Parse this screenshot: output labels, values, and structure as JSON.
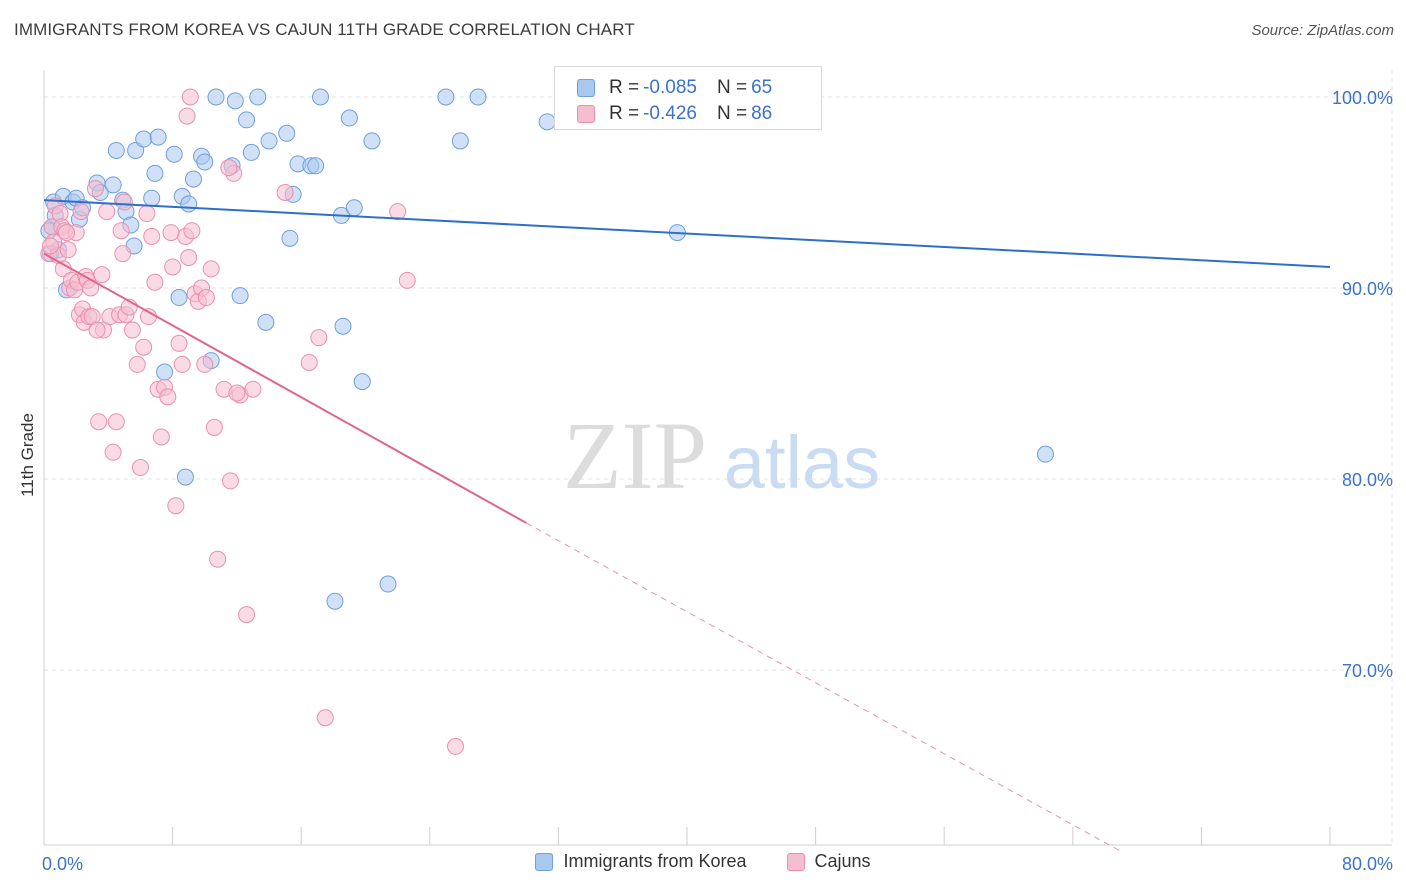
{
  "header": {
    "title": "IMMIGRANTS FROM KOREA VS CAJUN 11TH GRADE CORRELATION CHART",
    "source": "Source: ZipAtlas.com"
  },
  "watermark": {
    "zip": "ZIP",
    "atlas": "atlas"
  },
  "legend_top": [
    {
      "r_label": "R = ",
      "r_value": "-0.085",
      "n_label": "N = ",
      "n_value": "65"
    },
    {
      "r_label": "R = ",
      "r_value": "-0.426",
      "n_label": "N = ",
      "n_value": "86"
    }
  ],
  "legend_bottom": [
    {
      "label": "Immigrants from Korea"
    },
    {
      "label": "Cajuns"
    }
  ],
  "colors": {
    "blue_fill": "#a9c8f0",
    "blue_stroke": "#6f9fdc",
    "blue_line": "#2f6fc9",
    "pink_fill": "#f5bdd0",
    "pink_stroke": "#ea8fae",
    "pink_line": "#e0648f",
    "axis_text": "#3a73c9",
    "grid": "#e3e3e3"
  },
  "chart_data": {
    "type": "scatter",
    "title": "IMMIGRANTS FROM KOREA VS CAJUN 11TH GRADE CORRELATION CHART",
    "xlabel": "",
    "ylabel": "11th Grade",
    "xlim": [
      0,
      80
    ],
    "ylim": [
      60.5,
      101.5
    ],
    "x_tick_labels": [
      {
        "value": 0,
        "label": "0.0%"
      },
      {
        "value": 80,
        "label": "80.0%"
      }
    ],
    "y_tick_labels": [
      {
        "value": 100,
        "label": "100.0%"
      },
      {
        "value": 90,
        "label": "90.0%"
      },
      {
        "value": 80,
        "label": "80.0%"
      },
      {
        "value": 70,
        "label": "70.0%"
      }
    ],
    "x_minor_ticks": [
      0,
      8,
      16,
      24,
      32,
      40,
      48,
      56,
      64,
      72,
      80
    ],
    "grid": true,
    "series": [
      {
        "name": "Immigrants from Korea",
        "r": -0.085,
        "n": 65,
        "trend": {
          "x0": 0,
          "y0": 94.6,
          "x1": 80,
          "y1": 91.1
        },
        "points": [
          [
            0.4,
            91.8
          ],
          [
            0.5,
            93.2
          ],
          [
            0.6,
            94.5
          ],
          [
            0.7,
            93.8
          ],
          [
            1.2,
            94.8
          ],
          [
            1.4,
            89.9
          ],
          [
            1.8,
            94.5
          ],
          [
            2.0,
            94.7
          ],
          [
            2.2,
            93.6
          ],
          [
            2.4,
            94.2
          ],
          [
            3.3,
            95.5
          ],
          [
            3.5,
            95.0
          ],
          [
            4.3,
            95.4
          ],
          [
            4.5,
            97.2
          ],
          [
            4.9,
            94.6
          ],
          [
            5.1,
            94.0
          ],
          [
            5.4,
            93.3
          ],
          [
            5.6,
            92.2
          ],
          [
            5.7,
            97.2
          ],
          [
            6.2,
            97.8
          ],
          [
            6.7,
            94.7
          ],
          [
            6.9,
            96.0
          ],
          [
            7.1,
            97.9
          ],
          [
            7.5,
            85.6
          ],
          [
            8.1,
            97.0
          ],
          [
            8.4,
            89.5
          ],
          [
            8.6,
            94.8
          ],
          [
            8.8,
            80.1
          ],
          [
            9.0,
            94.4
          ],
          [
            9.3,
            95.7
          ],
          [
            9.8,
            96.9
          ],
          [
            10.0,
            96.6
          ],
          [
            10.4,
            86.2
          ],
          [
            10.7,
            100.0
          ],
          [
            11.7,
            96.4
          ],
          [
            11.9,
            99.8
          ],
          [
            12.2,
            89.6
          ],
          [
            12.6,
            98.8
          ],
          [
            12.9,
            97.1
          ],
          [
            13.3,
            100.0
          ],
          [
            13.8,
            88.2
          ],
          [
            14.0,
            97.7
          ],
          [
            15.1,
            98.1
          ],
          [
            15.3,
            92.6
          ],
          [
            15.5,
            94.9
          ],
          [
            15.8,
            96.5
          ],
          [
            16.6,
            96.4
          ],
          [
            16.9,
            96.4
          ],
          [
            17.2,
            100.0
          ],
          [
            18.1,
            73.6
          ],
          [
            18.5,
            93.8
          ],
          [
            18.6,
            88.0
          ],
          [
            19.0,
            98.9
          ],
          [
            19.3,
            94.2
          ],
          [
            19.8,
            85.1
          ],
          [
            20.4,
            97.7
          ],
          [
            21.4,
            74.5
          ],
          [
            25.0,
            100.0
          ],
          [
            25.9,
            97.7
          ],
          [
            27.0,
            100.0
          ],
          [
            31.3,
            98.7
          ],
          [
            39.4,
            92.9
          ],
          [
            62.3,
            81.3
          ],
          [
            0.3,
            93.0
          ],
          [
            0.9,
            92.0
          ]
        ]
      },
      {
        "name": "Cajuns",
        "r": -0.426,
        "n": 86,
        "trend": {
          "x0": 0,
          "y0": 91.8,
          "x1": 30.0,
          "y1": 77.7
        },
        "trend_extended": {
          "x0": 30.0,
          "y0": 77.7,
          "x1": 67.0,
          "y1": 60.5
        },
        "points": [
          [
            0.3,
            91.8
          ],
          [
            0.5,
            93.2
          ],
          [
            0.6,
            92.4
          ],
          [
            0.7,
            94.3
          ],
          [
            0.9,
            91.7
          ],
          [
            1.0,
            93.9
          ],
          [
            1.1,
            93.2
          ],
          [
            1.2,
            91.0
          ],
          [
            1.3,
            93.0
          ],
          [
            1.5,
            92.0
          ],
          [
            1.6,
            90.0
          ],
          [
            1.7,
            90.4
          ],
          [
            1.9,
            89.9
          ],
          [
            2.0,
            92.9
          ],
          [
            2.1,
            90.3
          ],
          [
            2.2,
            88.6
          ],
          [
            2.4,
            88.9
          ],
          [
            2.5,
            88.2
          ],
          [
            2.6,
            90.6
          ],
          [
            2.7,
            90.4
          ],
          [
            2.8,
            88.5
          ],
          [
            2.9,
            90.0
          ],
          [
            3.0,
            88.5
          ],
          [
            3.2,
            95.2
          ],
          [
            3.4,
            83.0
          ],
          [
            3.6,
            90.7
          ],
          [
            3.7,
            87.8
          ],
          [
            3.9,
            94.0
          ],
          [
            4.1,
            88.5
          ],
          [
            4.3,
            81.4
          ],
          [
            4.5,
            83.0
          ],
          [
            4.7,
            88.6
          ],
          [
            4.9,
            91.8
          ],
          [
            5.1,
            88.6
          ],
          [
            5.3,
            89.0
          ],
          [
            5.5,
            87.8
          ],
          [
            5.8,
            86.0
          ],
          [
            6.0,
            80.6
          ],
          [
            6.2,
            86.9
          ],
          [
            6.5,
            88.5
          ],
          [
            6.7,
            92.7
          ],
          [
            6.9,
            90.3
          ],
          [
            7.1,
            84.7
          ],
          [
            7.3,
            82.2
          ],
          [
            7.5,
            84.8
          ],
          [
            7.7,
            84.3
          ],
          [
            8.0,
            91.1
          ],
          [
            8.2,
            78.6
          ],
          [
            8.4,
            87.1
          ],
          [
            8.6,
            86.0
          ],
          [
            8.8,
            92.7
          ],
          [
            9.0,
            91.6
          ],
          [
            9.2,
            93.0
          ],
          [
            9.4,
            89.7
          ],
          [
            9.6,
            89.3
          ],
          [
            9.8,
            90.0
          ],
          [
            10.0,
            86.0
          ],
          [
            10.4,
            91.0
          ],
          [
            10.6,
            82.7
          ],
          [
            10.8,
            75.8
          ],
          [
            11.2,
            84.7
          ],
          [
            11.6,
            79.9
          ],
          [
            11.8,
            96.0
          ],
          [
            12.2,
            84.4
          ],
          [
            12.6,
            72.9
          ],
          [
            13.0,
            84.7
          ],
          [
            15.0,
            95.0
          ],
          [
            16.5,
            86.1
          ],
          [
            17.1,
            87.4
          ],
          [
            17.5,
            67.5
          ],
          [
            22.0,
            94.0
          ],
          [
            22.6,
            90.4
          ],
          [
            25.6,
            66.0
          ],
          [
            8.9,
            99.0
          ],
          [
            9.1,
            100.0
          ],
          [
            11.5,
            96.3
          ],
          [
            10.1,
            89.5
          ],
          [
            4.8,
            93.0
          ],
          [
            3.3,
            87.8
          ],
          [
            6.4,
            93.9
          ],
          [
            7.9,
            92.9
          ],
          [
            2.3,
            94.0
          ],
          [
            0.4,
            92.2
          ],
          [
            1.4,
            92.9
          ],
          [
            12.0,
            84.5
          ],
          [
            5.0,
            94.5
          ]
        ]
      }
    ]
  }
}
